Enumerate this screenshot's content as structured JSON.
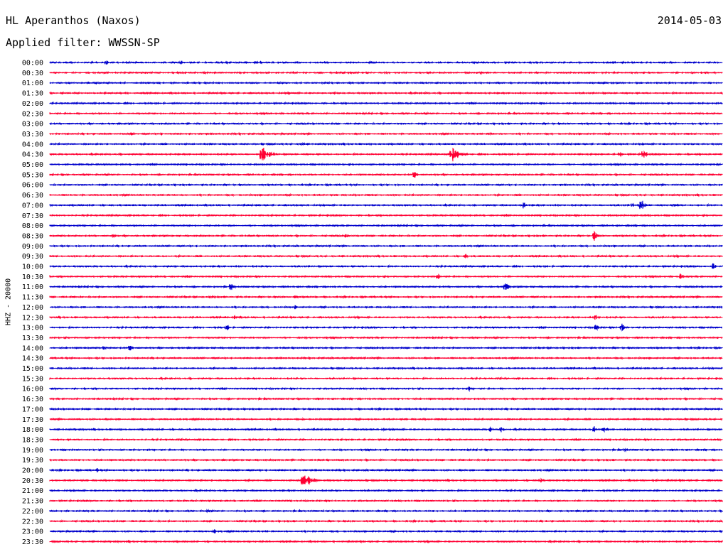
{
  "header": {
    "station": "HL Aperanthos (Naxos)",
    "date": "2014-05-03",
    "filter": "Applied filter: WWSSN-SP",
    "channel": "HHZ - 20000"
  },
  "chart_data": {
    "type": "line",
    "title": "HL Aperanthos (Naxos)",
    "subtitle": "Applied filter: WWSSN-SP",
    "ylabel": "HHZ - 20000",
    "grid": false,
    "trace_colors": [
      "#0000cc",
      "#ff0033"
    ],
    "rows": [
      {
        "label": "00:00",
        "events": [
          [
            150,
            4
          ],
          [
            255,
            3
          ],
          [
            360,
            3
          ]
        ]
      },
      {
        "label": "00:30",
        "events": [
          [
            677,
            3
          ]
        ]
      },
      {
        "label": "01:00",
        "events": []
      },
      {
        "label": "01:30",
        "events": [
          [
            470,
            2
          ],
          [
            600,
            2
          ]
        ]
      },
      {
        "label": "02:00",
        "events": []
      },
      {
        "label": "02:30",
        "events": []
      },
      {
        "label": "03:00",
        "events": []
      },
      {
        "label": "03:30",
        "events": [
          [
            185,
            2
          ],
          [
            225,
            3
          ],
          [
            690,
            2
          ]
        ]
      },
      {
        "label": "04:00",
        "events": [
          [
            425,
            3
          ]
        ]
      },
      {
        "label": "04:30",
        "events": [
          [
            368,
            14
          ],
          [
            635,
            14
          ],
          [
            872,
            5
          ],
          [
            905,
            8
          ]
        ]
      },
      {
        "label": "05:00",
        "events": []
      },
      {
        "label": "05:30",
        "events": [
          [
            582,
            7
          ]
        ]
      },
      {
        "label": "06:00",
        "events": []
      },
      {
        "label": "06:30",
        "events": []
      },
      {
        "label": "07:00",
        "events": [
          [
            736,
            6
          ],
          [
            890,
            5
          ],
          [
            902,
            10
          ],
          [
            950,
            4
          ]
        ]
      },
      {
        "label": "07:30",
        "events": []
      },
      {
        "label": "08:00",
        "events": []
      },
      {
        "label": "08:30",
        "events": [
          [
            160,
            4
          ],
          [
            487,
            4
          ],
          [
            836,
            8
          ]
        ]
      },
      {
        "label": "09:00",
        "events": []
      },
      {
        "label": "09:30",
        "events": [
          [
            655,
            4
          ]
        ]
      },
      {
        "label": "10:00",
        "events": [
          [
            1003,
            5
          ]
        ]
      },
      {
        "label": "10:30",
        "events": [
          [
            616,
            5
          ],
          [
            957,
            7
          ]
        ]
      },
      {
        "label": "11:00",
        "events": [
          [
            325,
            6
          ],
          [
            710,
            9
          ]
        ]
      },
      {
        "label": "11:30",
        "events": [
          [
            300,
            3
          ],
          [
            415,
            3
          ]
        ]
      },
      {
        "label": "12:00",
        "events": [
          [
            415,
            3
          ]
        ]
      },
      {
        "label": "12:30",
        "events": [
          [
            330,
            3
          ],
          [
            838,
            6
          ]
        ]
      },
      {
        "label": "13:00",
        "events": [
          [
            320,
            4
          ],
          [
            838,
            6
          ],
          [
            875,
            7
          ]
        ]
      },
      {
        "label": "13:30",
        "events": []
      },
      {
        "label": "14:00",
        "events": [
          [
            147,
            4
          ],
          [
            182,
            6
          ]
        ]
      },
      {
        "label": "14:30",
        "events": []
      },
      {
        "label": "15:00",
        "events": []
      },
      {
        "label": "15:30",
        "events": []
      },
      {
        "label": "16:00",
        "events": [
          [
            660,
            3
          ]
        ]
      },
      {
        "label": "16:30",
        "events": []
      },
      {
        "label": "17:00",
        "events": []
      },
      {
        "label": "17:30",
        "events": [
          [
            428,
            3
          ]
        ]
      },
      {
        "label": "18:00",
        "events": [
          [
            538,
            4
          ],
          [
            690,
            5
          ],
          [
            705,
            4
          ],
          [
            835,
            6
          ],
          [
            850,
            4
          ]
        ]
      },
      {
        "label": "18:30",
        "events": []
      },
      {
        "label": "19:00",
        "events": [
          [
            880,
            3
          ]
        ]
      },
      {
        "label": "19:30",
        "events": [
          [
            920,
            2
          ]
        ]
      },
      {
        "label": "20:00",
        "events": [
          [
            137,
            3
          ]
        ]
      },
      {
        "label": "20:30",
        "events": [
          [
            425,
            16
          ],
          [
            760,
            5
          ],
          [
            922,
            3
          ]
        ]
      },
      {
        "label": "21:00",
        "events": []
      },
      {
        "label": "21:30",
        "events": []
      },
      {
        "label": "22:00",
        "events": [
          [
            293,
            3
          ]
        ]
      },
      {
        "label": "22:30",
        "events": [
          [
            162,
            2
          ]
        ]
      },
      {
        "label": "23:00",
        "events": [
          [
            302,
            3
          ]
        ]
      },
      {
        "label": "23:30",
        "events": []
      }
    ]
  }
}
